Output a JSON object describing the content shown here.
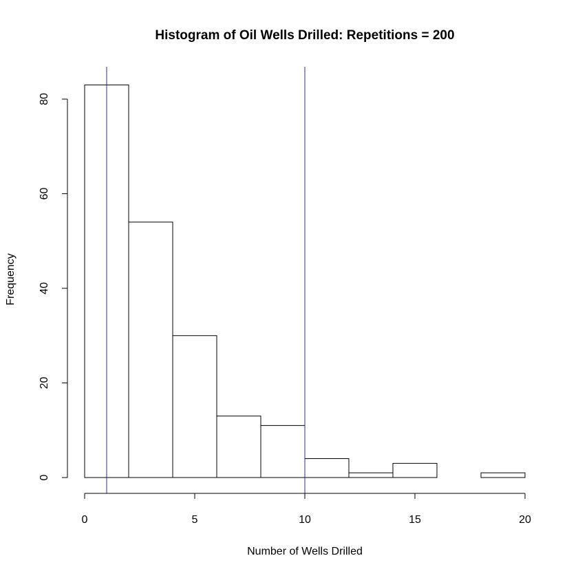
{
  "chart_data": {
    "type": "histogram",
    "title": "Histogram of Oil Wells Drilled: Repetitions = 200",
    "x_label": "Number of Wells Drilled",
    "y_label": "Frequency",
    "bins": [
      0,
      2,
      4,
      6,
      8,
      10,
      12,
      14,
      16,
      18,
      20
    ],
    "values": [
      83,
      54,
      30,
      13,
      11,
      4,
      1,
      3,
      0,
      1
    ],
    "color": "#ffffff",
    "edge_color": "#000000",
    "xlim": [
      0,
      20
    ],
    "ylim": [
      0,
      83
    ],
    "xticks": [
      0,
      5,
      10,
      15,
      20
    ],
    "yticks": [
      0,
      20,
      40,
      60,
      80
    ],
    "vlines": [
      1,
      10
    ],
    "vline_color": "#2b2b8f"
  }
}
